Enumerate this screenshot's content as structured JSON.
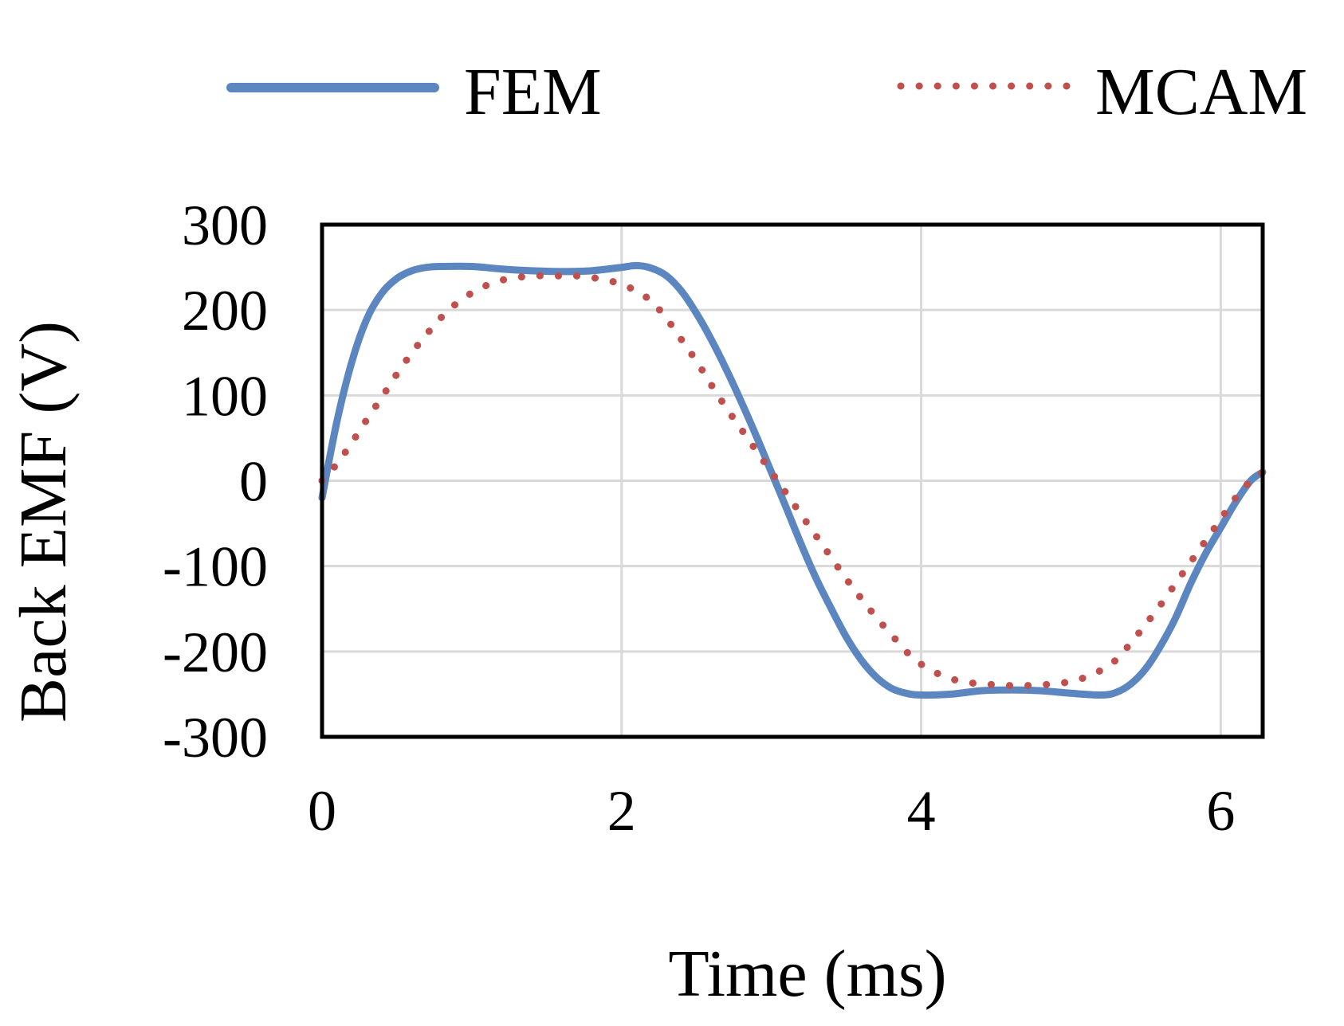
{
  "chart_data": {
    "type": "line",
    "title": "",
    "xlabel": "Time (ms)",
    "ylabel": "Back EMF (V)",
    "xlim": [
      0,
      6.28
    ],
    "ylim": [
      -300,
      300
    ],
    "xticks": [
      0,
      2,
      4,
      6
    ],
    "yticks": [
      300,
      200,
      100,
      0,
      -100,
      -200,
      -300
    ],
    "xtick_labels": [
      "0",
      "2",
      "4",
      "6"
    ],
    "ytick_labels": [
      "300",
      "200",
      "100",
      "0",
      "-100",
      "-200",
      "-300"
    ],
    "grid": true,
    "legend_position": "top",
    "series": [
      {
        "name": "FEM",
        "style": "solid",
        "color": "#5b86c0",
        "x": [
          0,
          0.1,
          0.2,
          0.3,
          0.4,
          0.5,
          0.6,
          0.7,
          0.8,
          1.0,
          1.2,
          1.4,
          1.6,
          1.8,
          2.0,
          2.1,
          2.2,
          2.3,
          2.4,
          2.5,
          2.6,
          2.7,
          2.8,
          2.9,
          3.0,
          3.1,
          3.2,
          3.3,
          3.4,
          3.5,
          3.6,
          3.7,
          3.8,
          3.9,
          4.0,
          4.2,
          4.4,
          4.6,
          4.8,
          5.0,
          5.2,
          5.3,
          5.4,
          5.5,
          5.6,
          5.7,
          5.8,
          5.9,
          6.0,
          6.1,
          6.2,
          6.28
        ],
        "y": [
          -20,
          70,
          140,
          190,
          220,
          237,
          246,
          250,
          251,
          251,
          248,
          246,
          245,
          246,
          250,
          252,
          249,
          240,
          222,
          196,
          165,
          130,
          92,
          52,
          10,
          -32,
          -75,
          -115,
          -150,
          -183,
          -210,
          -230,
          -243,
          -249,
          -251,
          -250,
          -246,
          -245,
          -246,
          -249,
          -251,
          -248,
          -238,
          -220,
          -193,
          -160,
          -120,
          -85,
          -55,
          -25,
          0,
          10
        ]
      },
      {
        "name": "MCAM",
        "style": "dotted",
        "color": "#c0504d",
        "x": [
          0,
          0.1,
          0.2,
          0.3,
          0.4,
          0.5,
          0.6,
          0.7,
          0.8,
          0.9,
          1.0,
          1.1,
          1.2,
          1.3,
          1.4,
          1.5,
          1.6,
          1.7,
          1.8,
          1.9,
          2.0,
          2.1,
          2.2,
          2.3,
          2.4,
          2.5,
          2.6,
          2.7,
          2.8,
          2.9,
          3.0,
          3.1,
          3.2,
          3.3,
          3.4,
          3.5,
          3.6,
          3.7,
          3.8,
          3.9,
          4.0,
          4.1,
          4.2,
          4.3,
          4.4,
          4.5,
          4.6,
          4.7,
          4.8,
          4.9,
          5.0,
          5.1,
          5.2,
          5.3,
          5.4,
          5.5,
          5.6,
          5.7,
          5.8,
          5.9,
          6.0,
          6.1,
          6.2,
          6.28
        ],
        "y": [
          0,
          20,
          45,
          72,
          98,
          125,
          150,
          172,
          192,
          208,
          220,
          229,
          235,
          238,
          240,
          240,
          240,
          240,
          238,
          235,
          230,
          222,
          210,
          190,
          165,
          140,
          112,
          85,
          60,
          35,
          10,
          -15,
          -40,
          -65,
          -90,
          -115,
          -138,
          -160,
          -180,
          -200,
          -215,
          -225,
          -232,
          -236,
          -238,
          -239,
          -240,
          -240,
          -239,
          -238,
          -235,
          -230,
          -222,
          -210,
          -190,
          -168,
          -145,
          -120,
          -95,
          -70,
          -45,
          -20,
          0,
          10
        ]
      }
    ]
  }
}
